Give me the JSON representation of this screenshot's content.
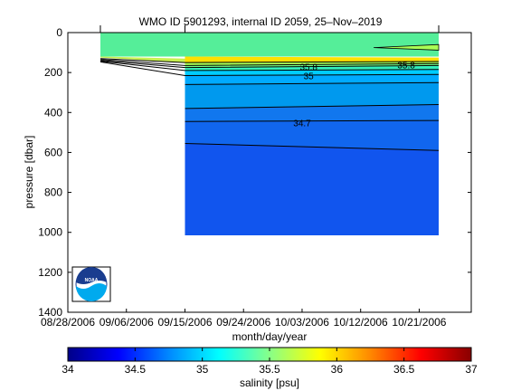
{
  "chart_data": {
    "type": "contour",
    "title": "WMO ID 5901293, internal ID 2059, 25–Nov–2019",
    "xlabel": "month/day/year",
    "ylabel": "pressure [dbar]",
    "x_ticks": [
      "08/28/2006",
      "09/06/2006",
      "09/15/2006",
      "09/24/2006",
      "10/03/2006",
      "10/12/2006",
      "10/21/2006"
    ],
    "xlim": [
      "2006-08-28",
      "2006-10-29"
    ],
    "ylim": [
      1400,
      0
    ],
    "y_ticks": [
      0,
      200,
      400,
      600,
      800,
      1000,
      1200,
      1400
    ],
    "y_reversed": true,
    "profile_dates": [
      "2006-09-02",
      "2006-09-15",
      "2006-10-24"
    ],
    "shallow_start_date": "2006-09-02",
    "deep_start_date": "2006-09-15",
    "end_date": "2006-10-24",
    "shallow_max_pressure": 120,
    "deep_max_pressure": 1015,
    "bands": [
      {
        "salinity": 35.3,
        "top": [
          0,
          0
        ],
        "bottom": [
          120,
          120
        ],
        "color": "#55ee99"
      },
      {
        "salinity": 35.75,
        "top": [
          120,
          125
        ],
        "bottom": [
          150,
          145
        ],
        "color": "#ffe000"
      },
      {
        "salinity": 35.55,
        "top": [
          150,
          145
        ],
        "bottom": [
          165,
          155
        ],
        "color": "#aaff55"
      },
      {
        "salinity": 35.35,
        "top": [
          165,
          155
        ],
        "bottom": [
          175,
          165
        ],
        "color": "#77ff88"
      },
      {
        "salinity": 35.15,
        "top": [
          175,
          165
        ],
        "bottom": [
          190,
          185
        ],
        "color": "#33eebb"
      },
      {
        "salinity": 35.05,
        "top": [
          190,
          185
        ],
        "bottom": [
          215,
          210
        ],
        "color": "#00ccff"
      },
      {
        "salinity": 34.95,
        "top": [
          215,
          210
        ],
        "bottom": [
          260,
          250
        ],
        "color": "#00aaff"
      },
      {
        "salinity": 34.85,
        "top": [
          260,
          250
        ],
        "bottom": [
          380,
          360
        ],
        "color": "#0099ee"
      },
      {
        "salinity": 34.75,
        "top": [
          380,
          360
        ],
        "bottom": [
          445,
          440
        ],
        "color": "#1177ee"
      },
      {
        "salinity": 34.65,
        "top": [
          445,
          440
        ],
        "bottom": [
          555,
          590
        ],
        "color": "#1166ee"
      },
      {
        "salinity": 34.55,
        "top": [
          555,
          590
        ],
        "bottom": [
          1015,
          1015
        ],
        "color": "#1155ee"
      }
    ],
    "contour_lines": [
      {
        "level": "35.8",
        "shallow_depth": 130,
        "from": 150,
        "to": 145
      },
      {
        "level": "",
        "shallow_depth": 135,
        "from": 165,
        "to": 155
      },
      {
        "level": "",
        "shallow_depth": 140,
        "from": 175,
        "to": 165
      },
      {
        "level": "",
        "shallow_depth": 143,
        "from": 190,
        "to": 185
      },
      {
        "level": "35",
        "shallow_depth": 147,
        "from": 215,
        "to": 210
      },
      {
        "level": "",
        "shallow_depth": null,
        "from": 260,
        "to": 250
      },
      {
        "level": "",
        "shallow_depth": null,
        "from": 380,
        "to": 360
      },
      {
        "level": "34.7",
        "shallow_depth": null,
        "from": 445,
        "to": 440
      },
      {
        "level": "",
        "shallow_depth": null,
        "from": 555,
        "to": 590
      }
    ],
    "contour_labels": [
      {
        "text": "35.8",
        "date": "2006-10-04",
        "pressure": 175
      },
      {
        "text": "35.8",
        "date": "2006-10-19",
        "pressure": 165
      },
      {
        "text": "35",
        "date": "2006-10-04",
        "pressure": 220
      },
      {
        "text": "34.7",
        "date": "2006-10-03",
        "pressure": 455
      }
    ],
    "colorbar": {
      "label": "salinity [psu]",
      "range": [
        34,
        37
      ],
      "ticks": [
        "34",
        "34.5",
        "35",
        "35.5",
        "36",
        "36.5",
        "37"
      ],
      "colors": [
        "#000088",
        "#0000ff",
        "#0088ff",
        "#00ffff",
        "#88ff88",
        "#ffff00",
        "#ff8800",
        "#ff0000",
        "#880000"
      ]
    }
  },
  "logo": {
    "text": "NOAA"
  }
}
